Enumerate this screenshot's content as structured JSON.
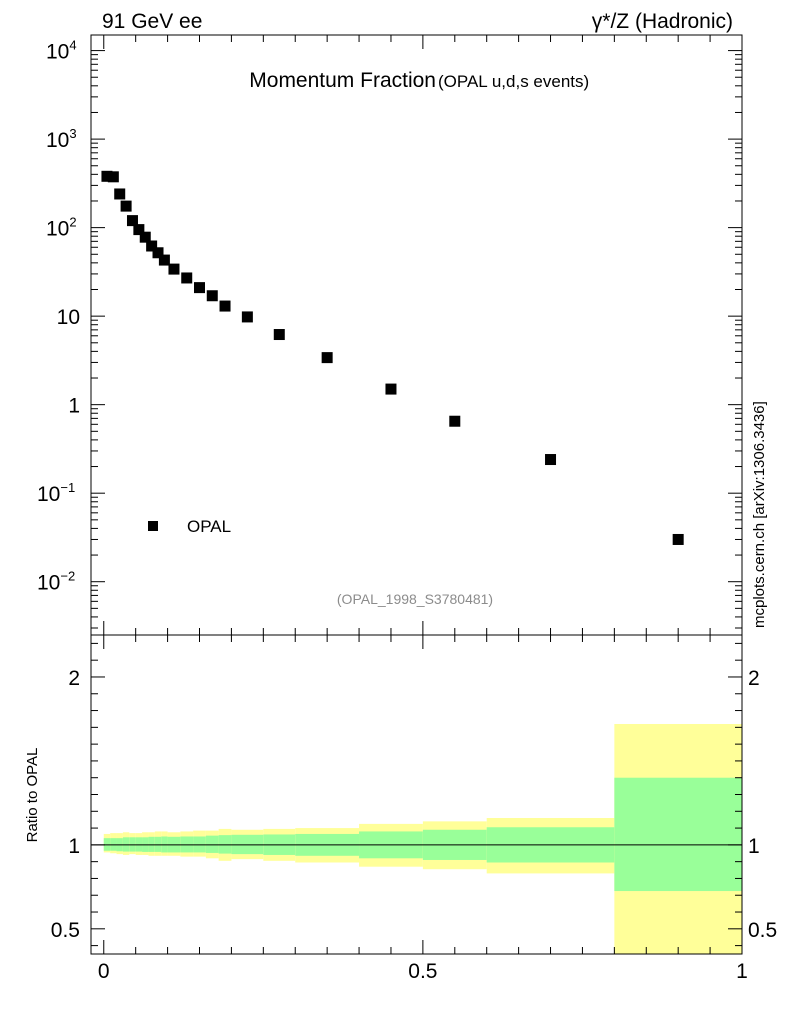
{
  "header": {
    "left": "91 GeV ee",
    "right": "γ*/Z (Hadronic)"
  },
  "side_label": "mcplots.cern.ch [arXiv:1306.3436]",
  "chart_data": [
    {
      "type": "scatter",
      "title_main": "Momentum Fraction",
      "title_sub": "(OPAL u,d,s events)",
      "reference": "(OPAL_1998_S3780481)",
      "yscale": "log",
      "xlim": [
        -0.02,
        1.0
      ],
      "ylim": [
        0.0025,
        15000
      ],
      "y_ticks": [
        {
          "value": 10000,
          "base": "10",
          "exp": "4"
        },
        {
          "value": 1000,
          "base": "10",
          "exp": "3"
        },
        {
          "value": 100,
          "base": "10",
          "exp": "2"
        },
        {
          "value": 10,
          "base": "10",
          "exp": ""
        },
        {
          "value": 1,
          "base": "1",
          "exp": ""
        },
        {
          "value": 0.1,
          "base": "10",
          "exp": "−1"
        },
        {
          "value": 0.01,
          "base": "10",
          "exp": "−2"
        }
      ],
      "legend": {
        "label": "OPAL",
        "position": "lower-left"
      },
      "series": [
        {
          "name": "OPAL",
          "x": [
            0.005,
            0.015,
            0.025,
            0.035,
            0.045,
            0.055,
            0.065,
            0.075,
            0.085,
            0.095,
            0.11,
            0.13,
            0.15,
            0.17,
            0.19,
            0.225,
            0.275,
            0.35,
            0.45,
            0.55,
            0.7,
            0.9
          ],
          "y": [
            380,
            375,
            240,
            175,
            120,
            95,
            78,
            62,
            52,
            43,
            34,
            27,
            21,
            17,
            13,
            9.8,
            6.2,
            3.4,
            1.5,
            0.65,
            0.24,
            0.03
          ]
        }
      ]
    },
    {
      "type": "area",
      "ylabel": "Ratio to OPAL",
      "xlim": [
        -0.02,
        1.0
      ],
      "ylim": [
        0.35,
        2.25
      ],
      "x_ticks": [
        {
          "value": 0,
          "label": "0"
        },
        {
          "value": 0.5,
          "label": "0.5"
        },
        {
          "value": 1,
          "label": "1"
        }
      ],
      "y_ticks": [
        {
          "value": 0.5,
          "label": "0.5"
        },
        {
          "value": 1,
          "label": "1"
        },
        {
          "value": 2,
          "label": "2"
        }
      ],
      "reference_line": 1.0,
      "bins": [
        {
          "lo": 0.0,
          "hi": 0.01,
          "stat_lo": 0.965,
          "stat_hi": 1.04,
          "tot_lo": 0.955,
          "tot_hi": 1.065
        },
        {
          "lo": 0.01,
          "hi": 0.02,
          "stat_lo": 0.965,
          "stat_hi": 1.04,
          "tot_lo": 0.95,
          "tot_hi": 1.07
        },
        {
          "lo": 0.02,
          "hi": 0.03,
          "stat_lo": 0.962,
          "stat_hi": 1.04,
          "tot_lo": 0.945,
          "tot_hi": 1.07
        },
        {
          "lo": 0.03,
          "hi": 0.04,
          "stat_lo": 0.96,
          "stat_hi": 1.045,
          "tot_lo": 0.94,
          "tot_hi": 1.075
        },
        {
          "lo": 0.04,
          "hi": 0.05,
          "stat_lo": 0.96,
          "stat_hi": 1.045,
          "tot_lo": 0.945,
          "tot_hi": 1.07
        },
        {
          "lo": 0.05,
          "hi": 0.06,
          "stat_lo": 0.96,
          "stat_hi": 1.045,
          "tot_lo": 0.94,
          "tot_hi": 1.07
        },
        {
          "lo": 0.06,
          "hi": 0.07,
          "stat_lo": 0.958,
          "stat_hi": 1.045,
          "tot_lo": 0.94,
          "tot_hi": 1.075
        },
        {
          "lo": 0.07,
          "hi": 0.08,
          "stat_lo": 0.958,
          "stat_hi": 1.048,
          "tot_lo": 0.935,
          "tot_hi": 1.075
        },
        {
          "lo": 0.08,
          "hi": 0.09,
          "stat_lo": 0.958,
          "stat_hi": 1.048,
          "tot_lo": 0.935,
          "tot_hi": 1.08
        },
        {
          "lo": 0.09,
          "hi": 0.1,
          "stat_lo": 0.955,
          "stat_hi": 1.05,
          "tot_lo": 0.935,
          "tot_hi": 1.08
        },
        {
          "lo": 0.1,
          "hi": 0.12,
          "stat_lo": 0.955,
          "stat_hi": 1.048,
          "tot_lo": 0.935,
          "tot_hi": 1.075
        },
        {
          "lo": 0.12,
          "hi": 0.14,
          "stat_lo": 0.955,
          "stat_hi": 1.05,
          "tot_lo": 0.93,
          "tot_hi": 1.08
        },
        {
          "lo": 0.14,
          "hi": 0.16,
          "stat_lo": 0.955,
          "stat_hi": 1.05,
          "tot_lo": 0.93,
          "tot_hi": 1.085
        },
        {
          "lo": 0.16,
          "hi": 0.18,
          "stat_lo": 0.952,
          "stat_hi": 1.055,
          "tot_lo": 0.92,
          "tot_hi": 1.085
        },
        {
          "lo": 0.18,
          "hi": 0.2,
          "stat_lo": 0.948,
          "stat_hi": 1.058,
          "tot_lo": 0.905,
          "tot_hi": 1.095
        },
        {
          "lo": 0.2,
          "hi": 0.25,
          "stat_lo": 0.945,
          "stat_hi": 1.06,
          "tot_lo": 0.915,
          "tot_hi": 1.09
        },
        {
          "lo": 0.25,
          "hi": 0.3,
          "stat_lo": 0.94,
          "stat_hi": 1.062,
          "tot_lo": 0.905,
          "tot_hi": 1.095
        },
        {
          "lo": 0.3,
          "hi": 0.4,
          "stat_lo": 0.935,
          "stat_hi": 1.065,
          "tot_lo": 0.895,
          "tot_hi": 1.1
        },
        {
          "lo": 0.4,
          "hi": 0.5,
          "stat_lo": 0.92,
          "stat_hi": 1.08,
          "tot_lo": 0.87,
          "tot_hi": 1.125
        },
        {
          "lo": 0.5,
          "hi": 0.6,
          "stat_lo": 0.91,
          "stat_hi": 1.09,
          "tot_lo": 0.855,
          "tot_hi": 1.14
        },
        {
          "lo": 0.6,
          "hi": 0.8,
          "stat_lo": 0.895,
          "stat_hi": 1.105,
          "tot_lo": 0.83,
          "tot_hi": 1.16
        },
        {
          "lo": 0.8,
          "hi": 1.0,
          "stat_lo": 0.725,
          "stat_hi": 1.4,
          "tot_lo": 0.35,
          "tot_hi": 1.72
        }
      ]
    }
  ],
  "colors": {
    "stat_band": "#99ff99",
    "total_band": "#ffff99",
    "marker": "#000000",
    "reference_text": "#8c8c8c"
  }
}
